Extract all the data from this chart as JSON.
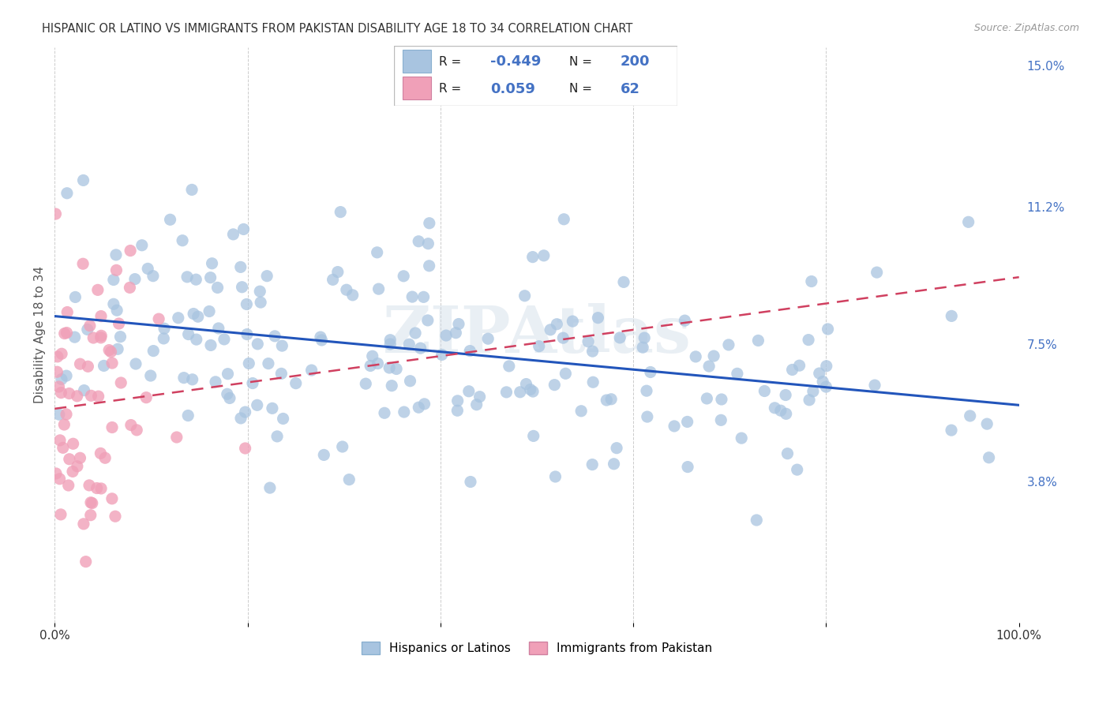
{
  "title": "HISPANIC OR LATINO VS IMMIGRANTS FROM PAKISTAN DISABILITY AGE 18 TO 34 CORRELATION CHART",
  "source": "Source: ZipAtlas.com",
  "ylabel": "Disability Age 18 to 34",
  "watermark": "ZIPAtlas",
  "blue_R": -0.449,
  "blue_N": 200,
  "pink_R": 0.059,
  "pink_N": 62,
  "blue_color": "#a8c4e0",
  "pink_color": "#f0a0b8",
  "blue_line_color": "#2255bb",
  "pink_line_color": "#d04060",
  "right_yticks": [
    0.038,
    0.075,
    0.112,
    0.15
  ],
  "right_yticklabels": [
    "3.8%",
    "7.5%",
    "11.2%",
    "15.0%"
  ],
  "xlim": [
    0,
    1.0
  ],
  "ylim": [
    0,
    0.155
  ],
  "legend_label_blue": "Hispanics or Latinos",
  "legend_label_pink": "Immigrants from Pakistan",
  "title_color": "#333333",
  "axis_label_color": "#555555",
  "right_tick_color": "#4472c4",
  "legend_value_color": "#4472c4",
  "grid_color": "#cccccc",
  "blue_intercept": 0.082,
  "blue_slope": -0.022,
  "pink_intercept": 0.058,
  "pink_slope": 0.045
}
